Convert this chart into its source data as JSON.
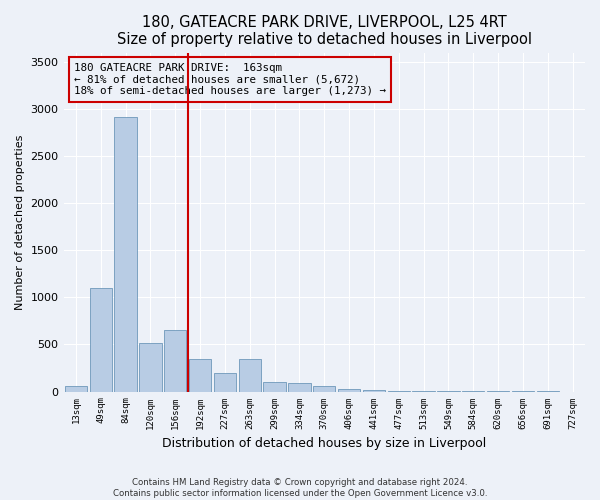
{
  "title1": "180, GATEACRE PARK DRIVE, LIVERPOOL, L25 4RT",
  "title2": "Size of property relative to detached houses in Liverpool",
  "xlabel": "Distribution of detached houses by size in Liverpool",
  "ylabel": "Number of detached properties",
  "categories": [
    "13sqm",
    "49sqm",
    "84sqm",
    "120sqm",
    "156sqm",
    "192sqm",
    "227sqm",
    "263sqm",
    "299sqm",
    "334sqm",
    "370sqm",
    "406sqm",
    "441sqm",
    "477sqm",
    "513sqm",
    "549sqm",
    "584sqm",
    "620sqm",
    "656sqm",
    "691sqm",
    "727sqm"
  ],
  "values": [
    55,
    1100,
    2920,
    520,
    655,
    345,
    200,
    345,
    105,
    95,
    55,
    30,
    12,
    7,
    4,
    3,
    2,
    1,
    1,
    1,
    0
  ],
  "bar_color": "#b8cce4",
  "bar_edge_color": "#5a8ab0",
  "property_line_index": 5,
  "property_line_color": "#cc0000",
  "annotation_text": "180 GATEACRE PARK DRIVE:  163sqm\n← 81% of detached houses are smaller (5,672)\n18% of semi-detached houses are larger (1,273) →",
  "annotation_box_color": "#cc0000",
  "ylim": [
    0,
    3600
  ],
  "yticks": [
    0,
    500,
    1000,
    1500,
    2000,
    2500,
    3000,
    3500
  ],
  "footer1": "Contains HM Land Registry data © Crown copyright and database right 2024.",
  "footer2": "Contains public sector information licensed under the Open Government Licence v3.0.",
  "bg_color": "#edf1f8",
  "grid_color": "#ffffff",
  "title1_fontsize": 10.5,
  "title2_fontsize": 9.5
}
